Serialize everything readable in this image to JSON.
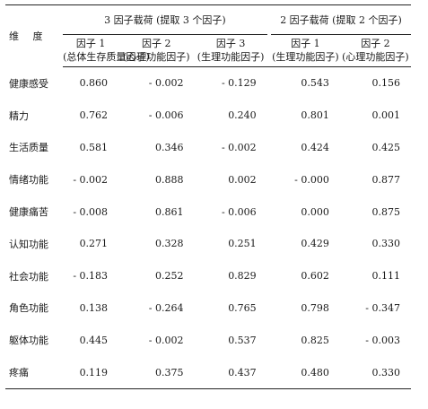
{
  "header": {
    "dimension_label": "维 度",
    "group1_title": "3 因子载荷 (提取 3 个因子)",
    "group2_title": "2 因子载荷 (提取 2 个因子)",
    "group1_factors": [
      {
        "name": "因子 1",
        "desc": "(总体生存质量因子)"
      },
      {
        "name": "因子 2",
        "desc": "(心理功能因子)"
      },
      {
        "name": "因子 3",
        "desc": "(生理功能因子)"
      }
    ],
    "group2_factors": [
      {
        "name": "因子 1",
        "desc": "(生理功能因子)"
      },
      {
        "name": "因子 2",
        "desc": "(心理功能因子)"
      }
    ]
  },
  "rows": [
    {
      "dim": "健康感受",
      "v": [
        "0.860",
        "- 0.002",
        "- 0.129",
        "0.543",
        "0.156"
      ]
    },
    {
      "dim": "精力",
      "v": [
        "0.762",
        "- 0.006",
        "0.240",
        "0.801",
        "0.001"
      ]
    },
    {
      "dim": "生活质量",
      "v": [
        "0.581",
        "0.346",
        "- 0.002",
        "0.424",
        "0.425"
      ]
    },
    {
      "dim": "情绪功能",
      "v": [
        "- 0.002",
        "0.888",
        "0.002",
        "- 0.000",
        "0.877"
      ]
    },
    {
      "dim": "健康痛苦",
      "v": [
        "- 0.008",
        "0.861",
        "- 0.006",
        "0.000",
        "0.875"
      ]
    },
    {
      "dim": "认知功能",
      "v": [
        "0.271",
        "0.328",
        "0.251",
        "0.429",
        "0.330"
      ]
    },
    {
      "dim": "社会功能",
      "v": [
        "- 0.183",
        "0.252",
        "0.829",
        "0.602",
        "0.111"
      ]
    },
    {
      "dim": "角色功能",
      "v": [
        "0.138",
        "- 0.264",
        "0.765",
        "0.798",
        "- 0.347"
      ]
    },
    {
      "dim": "躯体功能",
      "v": [
        "0.445",
        "- 0.002",
        "0.537",
        "0.825",
        "- 0.003"
      ]
    },
    {
      "dim": "疼痛",
      "v": [
        "0.119",
        "0.375",
        "0.437",
        "0.480",
        "0.330"
      ]
    }
  ]
}
